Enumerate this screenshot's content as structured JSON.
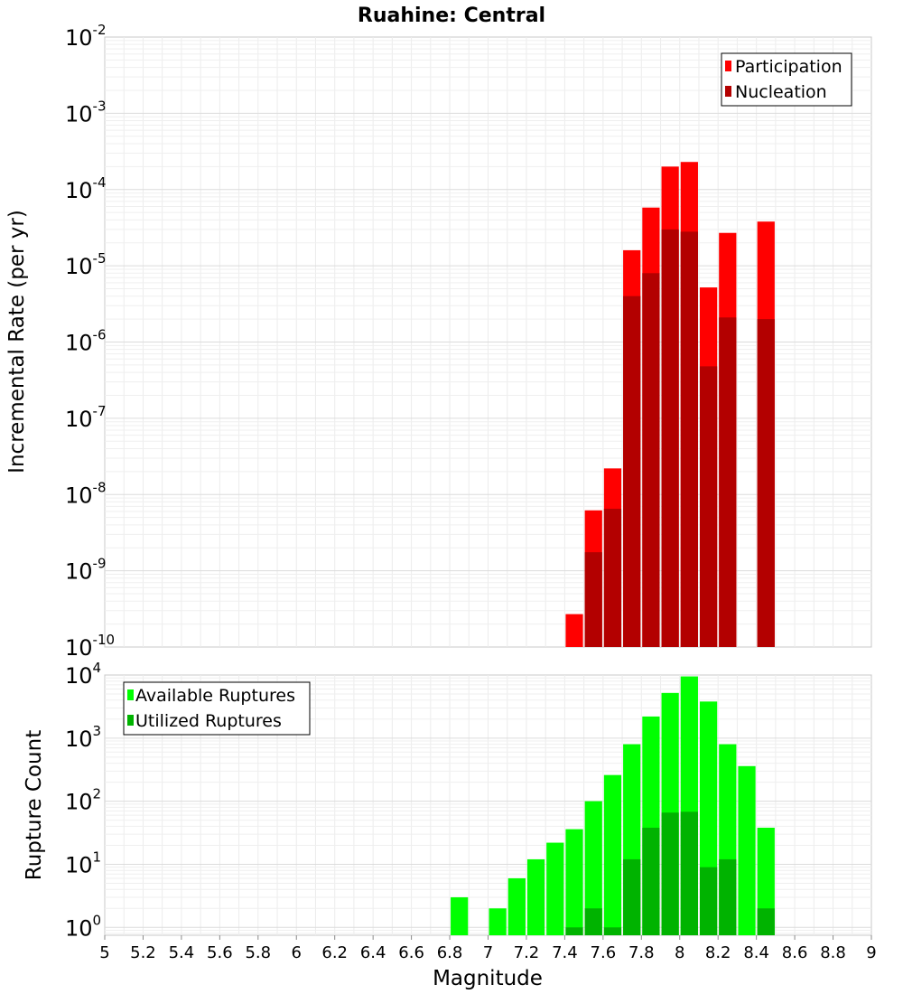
{
  "chart_data": {
    "title": "Ruahine: Central",
    "xlabel": "Magnitude",
    "xlim": [
      5,
      9
    ],
    "x_ticks": [
      "5",
      "5.2",
      "5.4",
      "5.6",
      "5.8",
      "6",
      "6.2",
      "6.4",
      "6.6",
      "6.8",
      "7",
      "7.2",
      "7.4",
      "7.6",
      "7.8",
      "8",
      "8.2",
      "8.4",
      "8.6",
      "8.8",
      "9"
    ],
    "grid": true,
    "panels": [
      {
        "type": "bar",
        "ylabel": "Incremental Rate (per yr)",
        "y_scale": "log",
        "ylim": [
          1e-10,
          0.01
        ],
        "y_tick_exponents": [
          "-10",
          "-9",
          "-8",
          "-7",
          "-6",
          "-5",
          "-4",
          "-3",
          "-2"
        ],
        "legend_position": "top-right",
        "series": [
          {
            "name": "Participation",
            "color": "#ff0000",
            "x": [
              7.45,
              7.55,
              7.65,
              7.75,
              7.85,
              7.95,
              8.05,
              8.15,
              8.25,
              8.45
            ],
            "values": [
              2.7e-10,
              6.2e-09,
              2.2e-08,
              1.6e-05,
              5.8e-05,
              0.0002,
              0.00023,
              5.2e-06,
              2.7e-05,
              3.8e-05
            ]
          },
          {
            "name": "Nucleation",
            "color": "#b30000",
            "x": [
              7.55,
              7.65,
              7.75,
              7.85,
              7.95,
              8.05,
              8.15,
              8.25,
              8.45
            ],
            "values": [
              1.75e-09,
              6.5e-09,
              4e-06,
              8e-06,
              3e-05,
              2.8e-05,
              4.8e-07,
              2.1e-06,
              2e-06
            ]
          }
        ]
      },
      {
        "type": "bar",
        "ylabel": "Rupture Count",
        "y_scale": "log",
        "ylim": [
          0.75,
          10000
        ],
        "y_tick_exponents": [
          "0",
          "1",
          "2",
          "3",
          "4"
        ],
        "legend_position": "top-left",
        "series": [
          {
            "name": "Available Ruptures",
            "color": "#00ff00",
            "x": [
              6.85,
              7.05,
              7.15,
              7.25,
              7.35,
              7.45,
              7.55,
              7.65,
              7.75,
              7.85,
              7.95,
              8.05,
              8.15,
              8.25,
              8.35,
              8.45
            ],
            "values": [
              3,
              2,
              6,
              12,
              22,
              36,
              100,
              260,
              800,
              2200,
              5200,
              9500,
              3800,
              800,
              360,
              38
            ]
          },
          {
            "name": "Utilized Ruptures",
            "color": "#00b300",
            "x": [
              7.45,
              7.55,
              7.65,
              7.75,
              7.85,
              7.95,
              8.05,
              8.15,
              8.25,
              8.45
            ],
            "values": [
              1,
              2,
              1,
              12,
              38,
              66,
              68,
              9,
              12,
              2
            ]
          }
        ]
      }
    ]
  }
}
